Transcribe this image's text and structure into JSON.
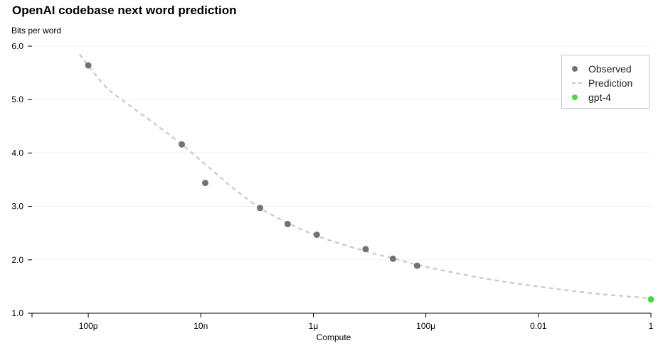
{
  "chart_data": {
    "type": "scatter",
    "title": "OpenAI codebase next word prediction",
    "ylabel": "Bits per word",
    "xlabel": "Compute",
    "x_scale": "log",
    "xlim": [
      1e-11,
      1
    ],
    "ylim": [
      1.0,
      6.0
    ],
    "x_ticks": [
      {
        "value": 1e-10,
        "label": "100p"
      },
      {
        "value": 1e-08,
        "label": "10n"
      },
      {
        "value": 1e-06,
        "label": "1μ"
      },
      {
        "value": 0.0001,
        "label": "100μ"
      },
      {
        "value": 0.01,
        "label": "0.01"
      },
      {
        "value": 1,
        "label": "1"
      }
    ],
    "y_ticks": [
      {
        "value": 1.0,
        "label": "1.0"
      },
      {
        "value": 2.0,
        "label": "2.0"
      },
      {
        "value": 3.0,
        "label": "3.0"
      },
      {
        "value": 4.0,
        "label": "4.0"
      },
      {
        "value": 5.0,
        "label": "5.0"
      },
      {
        "value": 6.0,
        "label": "6.0"
      }
    ],
    "grid": "horizontal",
    "legend_position": "top-right",
    "series": [
      {
        "name": "Observed",
        "kind": "points",
        "color": "#737373",
        "points": [
          {
            "x": 1e-10,
            "y": 5.64
          },
          {
            "x": 4.6e-09,
            "y": 4.16
          },
          {
            "x": 1.2e-08,
            "y": 3.44
          },
          {
            "x": 1.13e-07,
            "y": 2.97
          },
          {
            "x": 3.5e-07,
            "y": 2.67
          },
          {
            "x": 1.15e-06,
            "y": 2.47
          },
          {
            "x": 8.5e-06,
            "y": 2.2
          },
          {
            "x": 2.6e-05,
            "y": 2.02
          },
          {
            "x": 7e-05,
            "y": 1.89
          }
        ]
      },
      {
        "name": "Prediction",
        "kind": "dashed-line",
        "color": "#c8c8c8",
        "points": [
          {
            "x": 7e-11,
            "y": 5.85
          },
          {
            "x": 2e-10,
            "y": 5.25
          },
          {
            "x": 5e-10,
            "y": 4.92
          },
          {
            "x": 1.5e-09,
            "y": 4.55
          },
          {
            "x": 4.6e-09,
            "y": 4.16
          },
          {
            "x": 1.5e-08,
            "y": 3.7
          },
          {
            "x": 4e-08,
            "y": 3.32
          },
          {
            "x": 1.13e-07,
            "y": 2.97
          },
          {
            "x": 3.5e-07,
            "y": 2.69
          },
          {
            "x": 1.15e-06,
            "y": 2.45
          },
          {
            "x": 3.5e-06,
            "y": 2.28
          },
          {
            "x": 1e-05,
            "y": 2.14
          },
          {
            "x": 3e-05,
            "y": 2.01
          },
          {
            "x": 0.0001,
            "y": 1.87
          },
          {
            "x": 0.001,
            "y": 1.66
          },
          {
            "x": 0.01,
            "y": 1.5
          },
          {
            "x": 0.1,
            "y": 1.37
          },
          {
            "x": 1.0,
            "y": 1.28
          }
        ]
      },
      {
        "name": "gpt-4",
        "kind": "points",
        "color": "#4cd64c",
        "points": [
          {
            "x": 1.0,
            "y": 1.26
          }
        ]
      }
    ]
  },
  "legend": {
    "observed_label": "Observed",
    "prediction_label": "Prediction",
    "gpt4_label": "gpt-4",
    "observed_color": "#737373",
    "gpt4_color": "#4cd64c"
  }
}
